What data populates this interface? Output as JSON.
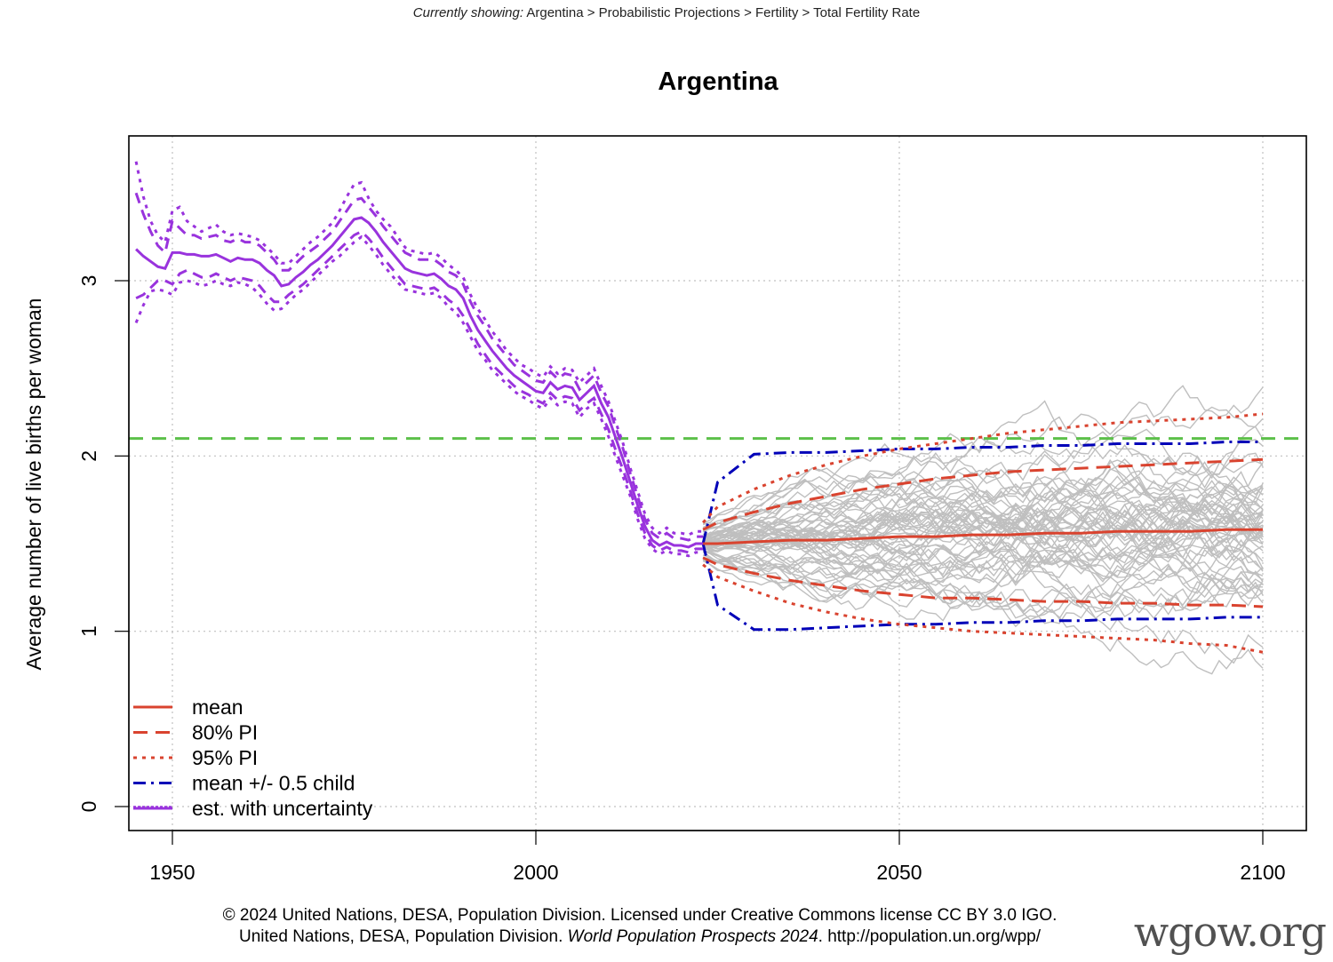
{
  "breadcrumb": {
    "lead": "Currently showing:",
    "path": "Argentina > Probabilistic Projections > Fertility > Total Fertility Rate"
  },
  "footer": {
    "line1": "© 2024 United Nations, DESA, Population Division. Licensed under Creative Commons license CC BY 3.0 IGO.",
    "line2_pre": "United Nations, DESA, Population Division.",
    "line2_italic": "World Population Prospects 2024",
    "line2_post": ". http://population.un.org/wpp/"
  },
  "watermark": "wgow.org",
  "colors": {
    "estimate": "#9933dd",
    "mean": "#d9432f",
    "pi": "#d9432f",
    "half_child": "#0000b8",
    "replacement": "#5cc04a",
    "trajectories": "#bfbfbf",
    "grid": "#c0c0c0"
  },
  "chart_data": {
    "type": "line",
    "title": "Argentina",
    "xlabel": "",
    "ylabel": "Average number of live births per woman",
    "xlim": [
      1944,
      2106
    ],
    "ylim": [
      -0.14,
      3.81
    ],
    "xticks": [
      1950,
      2000,
      2050,
      2100
    ],
    "xtick_labels": [
      "1950",
      "2000",
      "2050",
      "2100"
    ],
    "yticks": [
      0,
      1,
      2,
      3
    ],
    "ytick_labels": [
      "0",
      "1",
      "2",
      "3"
    ],
    "grid": true,
    "legend_position": "bottom-left",
    "legend": [
      {
        "label": "mean",
        "style": "solid",
        "color_key": "mean"
      },
      {
        "label": "80% PI",
        "style": "dashed",
        "color_key": "pi"
      },
      {
        "label": "95% PI",
        "style": "dotted",
        "color_key": "pi"
      },
      {
        "label": "mean +/- 0.5 child",
        "style": "dashdot",
        "color_key": "half_child"
      },
      {
        "label": "est. with uncertainty",
        "style": "solid",
        "color_key": "estimate"
      }
    ],
    "replacement_level": 2.1,
    "estimate": {
      "x": [
        1945,
        1946,
        1947,
        1948,
        1949,
        1950,
        1951,
        1952,
        1953,
        1954,
        1955,
        1956,
        1957,
        1958,
        1959,
        1960,
        1961,
        1962,
        1963,
        1964,
        1965,
        1966,
        1967,
        1968,
        1969,
        1970,
        1971,
        1972,
        1973,
        1974,
        1975,
        1976,
        1977,
        1978,
        1979,
        1980,
        1981,
        1982,
        1983,
        1984,
        1985,
        1986,
        1987,
        1988,
        1989,
        1990,
        1991,
        1992,
        1993,
        1994,
        1995,
        1996,
        1997,
        1998,
        1999,
        2000,
        2001,
        2002,
        2003,
        2004,
        2005,
        2006,
        2007,
        2008,
        2009,
        2010,
        2011,
        2012,
        2013,
        2014,
        2015,
        2016,
        2017,
        2018,
        2019,
        2020,
        2021,
        2022,
        2023
      ],
      "mean": [
        3.18,
        3.14,
        3.11,
        3.08,
        3.07,
        3.16,
        3.16,
        3.15,
        3.15,
        3.14,
        3.14,
        3.15,
        3.13,
        3.11,
        3.13,
        3.12,
        3.12,
        3.1,
        3.06,
        3.03,
        2.97,
        2.98,
        3.02,
        3.05,
        3.09,
        3.12,
        3.16,
        3.2,
        3.25,
        3.3,
        3.35,
        3.36,
        3.33,
        3.28,
        3.22,
        3.17,
        3.12,
        3.07,
        3.05,
        3.04,
        3.03,
        3.04,
        3.01,
        2.97,
        2.95,
        2.9,
        2.8,
        2.72,
        2.66,
        2.6,
        2.55,
        2.5,
        2.46,
        2.43,
        2.4,
        2.37,
        2.36,
        2.42,
        2.38,
        2.4,
        2.39,
        2.32,
        2.36,
        2.4,
        2.3,
        2.22,
        2.1,
        1.98,
        1.85,
        1.72,
        1.6,
        1.52,
        1.49,
        1.51,
        1.49,
        1.49,
        1.48,
        1.5,
        1.5
      ],
      "lo80": [
        2.9,
        2.92,
        2.96,
        3.0,
        3.0,
        2.98,
        3.04,
        3.06,
        3.04,
        3.02,
        3.02,
        3.04,
        3.02,
        3.0,
        3.02,
        3.01,
        3.0,
        2.97,
        2.92,
        2.88,
        2.88,
        2.92,
        2.95,
        2.98,
        3.02,
        3.06,
        3.1,
        3.14,
        3.18,
        3.22,
        3.26,
        3.28,
        3.24,
        3.19,
        3.13,
        3.08,
        3.03,
        2.98,
        2.97,
        2.96,
        2.95,
        2.96,
        2.93,
        2.89,
        2.86,
        2.8,
        2.72,
        2.64,
        2.58,
        2.52,
        2.48,
        2.44,
        2.4,
        2.37,
        2.35,
        2.32,
        2.3,
        2.36,
        2.32,
        2.34,
        2.33,
        2.26,
        2.3,
        2.33,
        2.24,
        2.15,
        2.03,
        1.92,
        1.8,
        1.67,
        1.56,
        1.49,
        1.46,
        1.48,
        1.46,
        1.46,
        1.45,
        1.47,
        1.47
      ],
      "hi80": [
        3.5,
        3.38,
        3.28,
        3.2,
        3.16,
        3.34,
        3.3,
        3.26,
        3.26,
        3.24,
        3.25,
        3.26,
        3.23,
        3.22,
        3.24,
        3.22,
        3.22,
        3.2,
        3.16,
        3.12,
        3.06,
        3.06,
        3.1,
        3.14,
        3.17,
        3.2,
        3.24,
        3.28,
        3.34,
        3.4,
        3.46,
        3.47,
        3.42,
        3.37,
        3.31,
        3.26,
        3.21,
        3.16,
        3.14,
        3.12,
        3.12,
        3.12,
        3.09,
        3.05,
        3.03,
        2.98,
        2.88,
        2.8,
        2.74,
        2.67,
        2.62,
        2.57,
        2.52,
        2.49,
        2.46,
        2.43,
        2.42,
        2.48,
        2.44,
        2.47,
        2.46,
        2.38,
        2.42,
        2.46,
        2.36,
        2.28,
        2.16,
        2.04,
        1.9,
        1.77,
        1.64,
        1.56,
        1.53,
        1.56,
        1.53,
        1.53,
        1.52,
        1.54,
        1.54
      ],
      "lo95": [
        2.76,
        2.86,
        2.94,
        2.95,
        2.94,
        2.92,
        2.99,
        3.0,
        2.99,
        2.97,
        2.98,
        3.0,
        2.98,
        2.97,
        2.99,
        2.98,
        2.96,
        2.92,
        2.87,
        2.83,
        2.84,
        2.88,
        2.92,
        2.95,
        2.99,
        3.03,
        3.07,
        3.11,
        3.14,
        3.18,
        3.22,
        3.25,
        3.2,
        3.15,
        3.09,
        3.04,
        2.99,
        2.95,
        2.94,
        2.93,
        2.92,
        2.93,
        2.9,
        2.85,
        2.82,
        2.76,
        2.68,
        2.6,
        2.55,
        2.49,
        2.45,
        2.41,
        2.37,
        2.34,
        2.32,
        2.29,
        2.27,
        2.33,
        2.29,
        2.31,
        2.3,
        2.22,
        2.27,
        2.3,
        2.21,
        2.11,
        1.99,
        1.88,
        1.77,
        1.64,
        1.53,
        1.47,
        1.44,
        1.46,
        1.44,
        1.44,
        1.43,
        1.45,
        1.45
      ],
      "hi95": [
        3.68,
        3.48,
        3.34,
        3.26,
        3.22,
        3.4,
        3.42,
        3.34,
        3.31,
        3.28,
        3.3,
        3.32,
        3.28,
        3.26,
        3.27,
        3.26,
        3.25,
        3.23,
        3.19,
        3.15,
        3.1,
        3.1,
        3.14,
        3.18,
        3.22,
        3.25,
        3.29,
        3.33,
        3.4,
        3.48,
        3.55,
        3.56,
        3.47,
        3.4,
        3.35,
        3.31,
        3.25,
        3.19,
        3.17,
        3.16,
        3.15,
        3.16,
        3.13,
        3.09,
        3.06,
        3.02,
        2.92,
        2.84,
        2.78,
        2.71,
        2.66,
        2.6,
        2.56,
        2.52,
        2.5,
        2.47,
        2.45,
        2.51,
        2.47,
        2.5,
        2.49,
        2.42,
        2.46,
        2.5,
        2.4,
        2.31,
        2.19,
        2.07,
        1.93,
        1.8,
        1.67,
        1.59,
        1.56,
        1.59,
        1.56,
        1.56,
        1.55,
        1.57,
        1.57
      ]
    },
    "projection": {
      "x": [
        2023,
        2025,
        2030,
        2035,
        2040,
        2045,
        2050,
        2055,
        2060,
        2065,
        2070,
        2075,
        2080,
        2085,
        2090,
        2095,
        2100
      ],
      "mean": [
        1.5,
        1.5,
        1.51,
        1.52,
        1.52,
        1.53,
        1.54,
        1.54,
        1.55,
        1.55,
        1.56,
        1.56,
        1.57,
        1.57,
        1.57,
        1.58,
        1.58
      ],
      "lo80": [
        1.42,
        1.38,
        1.33,
        1.29,
        1.26,
        1.23,
        1.21,
        1.19,
        1.19,
        1.18,
        1.17,
        1.17,
        1.16,
        1.16,
        1.15,
        1.15,
        1.14
      ],
      "hi80": [
        1.58,
        1.62,
        1.68,
        1.73,
        1.77,
        1.81,
        1.84,
        1.87,
        1.89,
        1.91,
        1.92,
        1.93,
        1.94,
        1.95,
        1.96,
        1.97,
        1.98
      ],
      "lo95": [
        1.38,
        1.31,
        1.23,
        1.16,
        1.11,
        1.07,
        1.04,
        1.02,
        1.0,
        0.99,
        0.98,
        0.97,
        0.96,
        0.95,
        0.93,
        0.92,
        0.88
      ],
      "hi95": [
        1.62,
        1.71,
        1.81,
        1.89,
        1.95,
        2.0,
        2.04,
        2.07,
        2.1,
        2.13,
        2.15,
        2.17,
        2.19,
        2.2,
        2.21,
        2.22,
        2.24
      ],
      "half_lo": [
        1.5,
        1.15,
        1.01,
        1.01,
        1.02,
        1.03,
        1.04,
        1.04,
        1.05,
        1.05,
        1.06,
        1.06,
        1.07,
        1.07,
        1.07,
        1.08,
        1.08
      ],
      "half_hi": [
        1.5,
        1.85,
        2.01,
        2.02,
        2.02,
        2.03,
        2.04,
        2.04,
        2.05,
        2.05,
        2.06,
        2.06,
        2.07,
        2.07,
        2.07,
        2.08,
        2.08
      ]
    },
    "trajectories_count": 60
  }
}
